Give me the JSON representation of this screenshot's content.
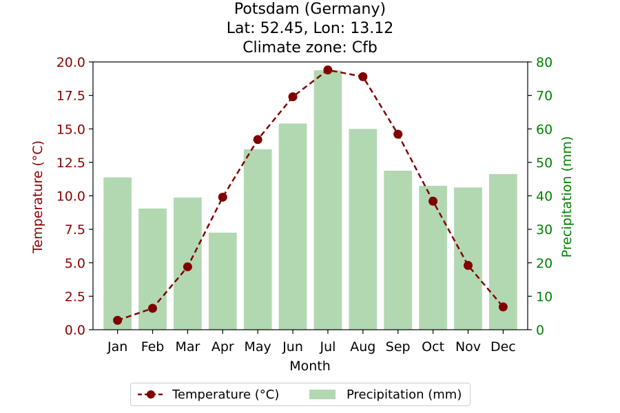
{
  "title": {
    "line1": "Potsdam (Germany)",
    "line2": "Lat: 52.45, Lon: 13.12",
    "line3": "Climate zone: Cfb"
  },
  "chart_data": {
    "type": "bar+line",
    "categories": [
      "Jan",
      "Feb",
      "Mar",
      "Apr",
      "May",
      "Jun",
      "Jul",
      "Aug",
      "Sep",
      "Oct",
      "Nov",
      "Dec"
    ],
    "series": [
      {
        "name": "Temperature (°C)",
        "type": "line",
        "axis": "left",
        "color": "#800000",
        "values": [
          0.7,
          1.6,
          4.7,
          9.9,
          14.2,
          17.4,
          19.4,
          18.9,
          14.6,
          9.6,
          4.8,
          1.7
        ]
      },
      {
        "name": "Precipitation (mm)",
        "type": "bar",
        "axis": "right",
        "color": "#b2d8b2",
        "values": [
          45.5,
          36.2,
          39.5,
          29.0,
          53.9,
          61.6,
          77.5,
          60.0,
          47.5,
          43.0,
          42.5,
          46.5
        ]
      }
    ],
    "xlabel": "Month",
    "ylabel_left": "Temperature (°C)",
    "ylabel_right": "Precipitation (mm)",
    "ylim_left": [
      0,
      20
    ],
    "ylim_right": [
      0,
      80
    ],
    "yticks_left": [
      "0.0",
      "2.5",
      "5.0",
      "7.5",
      "10.0",
      "12.5",
      "15.0",
      "17.5",
      "20.0"
    ],
    "yticks_right": [
      "0",
      "10",
      "20",
      "30",
      "40",
      "50",
      "60",
      "70",
      "80"
    ],
    "left_axis_color": "#8b0000",
    "right_axis_color": "#008000",
    "grid": false,
    "legend_position": "bottom-center"
  },
  "legend": {
    "temperature_label": "Temperature (°C)",
    "precipitation_label": "Precipitation (mm)"
  }
}
